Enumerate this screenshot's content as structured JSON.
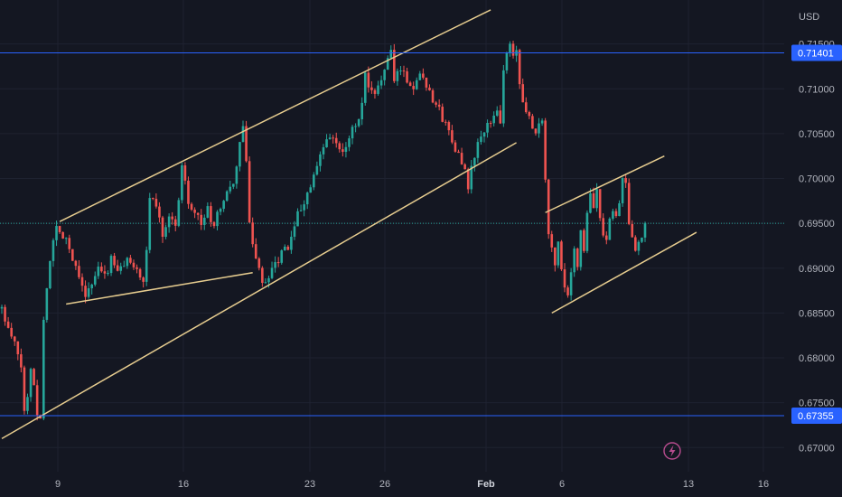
{
  "chart_data": {
    "type": "candlestick",
    "title": "",
    "currency_label": "USD",
    "x_axis_ticks": [
      "9",
      "16",
      "23",
      "26",
      "Feb",
      "6",
      "13",
      "16"
    ],
    "x_axis_bold_tick": "Feb",
    "y_axis_ticks": [
      "0.71500",
      "0.71000",
      "0.70500",
      "0.70000",
      "0.69500",
      "0.69000",
      "0.68500",
      "0.68000",
      "0.67500",
      "0.67000"
    ],
    "ylim": [
      0.6665,
      0.7192
    ],
    "horizontal_levels": [
      {
        "label": "0.71401",
        "value": 0.71401
      },
      {
        "label": "0.67355",
        "value": 0.67355
      }
    ],
    "last_price": 0.695,
    "grid": true,
    "trendlines": [
      {
        "role": "ascending-channel-lower",
        "from": {
          "x": 0,
          "y": 0.671
        },
        "to": {
          "x": 160,
          "y": 0.704
        }
      },
      {
        "role": "ascending-channel-upper",
        "from": {
          "x": 18,
          "y": 0.6952
        },
        "to": {
          "x": 152,
          "y": 0.7188
        }
      },
      {
        "role": "inner-support",
        "from": {
          "x": 20,
          "y": 0.686
        },
        "to": {
          "x": 78,
          "y": 0.6895
        }
      },
      {
        "role": "flag-lower",
        "from": {
          "x": 171,
          "y": 0.685
        },
        "to": {
          "x": 216,
          "y": 0.694
        }
      },
      {
        "role": "flag-upper",
        "from": {
          "x": 169,
          "y": 0.6962
        },
        "to": {
          "x": 206,
          "y": 0.7025
        }
      }
    ],
    "price_path": [
      [
        0,
        0.6855
      ],
      [
        2,
        0.683
      ],
      [
        4,
        0.6815
      ],
      [
        6,
        0.679
      ],
      [
        7,
        0.674
      ],
      [
        8,
        0.6755
      ],
      [
        9,
        0.679
      ],
      [
        10,
        0.677
      ],
      [
        11,
        0.674
      ],
      [
        12,
        0.6735
      ],
      [
        13,
        0.684
      ],
      [
        14,
        0.688
      ],
      [
        15,
        0.691
      ],
      [
        16,
        0.693
      ],
      [
        17,
        0.6945
      ],
      [
        18,
        0.694
      ],
      [
        20,
        0.6935
      ],
      [
        22,
        0.691
      ],
      [
        24,
        0.6895
      ],
      [
        26,
        0.687
      ],
      [
        28,
        0.688
      ],
      [
        30,
        0.69
      ],
      [
        32,
        0.689
      ],
      [
        34,
        0.691
      ],
      [
        36,
        0.6895
      ],
      [
        38,
        0.6905
      ],
      [
        40,
        0.691
      ],
      [
        42,
        0.69
      ],
      [
        44,
        0.688
      ],
      [
        45,
        0.692
      ],
      [
        46,
        0.698
      ],
      [
        48,
        0.697
      ],
      [
        50,
        0.694
      ],
      [
        52,
        0.696
      ],
      [
        54,
        0.6945
      ],
      [
        56,
        0.7015
      ],
      [
        57,
        0.7
      ],
      [
        58,
        0.6975
      ],
      [
        60,
        0.6965
      ],
      [
        62,
        0.695
      ],
      [
        64,
        0.6965
      ],
      [
        66,
        0.6945
      ],
      [
        68,
        0.697
      ],
      [
        70,
        0.6985
      ],
      [
        72,
        0.699
      ],
      [
        74,
        0.704
      ],
      [
        75,
        0.706
      ],
      [
        76,
        0.7015
      ],
      [
        77,
        0.695
      ],
      [
        78,
        0.693
      ],
      [
        80,
        0.6895
      ],
      [
        82,
        0.688
      ],
      [
        84,
        0.6895
      ],
      [
        86,
        0.691
      ],
      [
        88,
        0.692
      ],
      [
        90,
        0.693
      ],
      [
        92,
        0.696
      ],
      [
        94,
        0.6975
      ],
      [
        96,
        0.699
      ],
      [
        98,
        0.701
      ],
      [
        100,
        0.7035
      ],
      [
        102,
        0.7045
      ],
      [
        104,
        0.704
      ],
      [
        106,
        0.7025
      ],
      [
        108,
        0.705
      ],
      [
        110,
        0.706
      ],
      [
        112,
        0.708
      ],
      [
        113,
        0.7115
      ],
      [
        114,
        0.71
      ],
      [
        116,
        0.709
      ],
      [
        118,
        0.7115
      ],
      [
        120,
        0.713
      ],
      [
        121,
        0.714
      ],
      [
        122,
        0.711
      ],
      [
        124,
        0.7125
      ],
      [
        126,
        0.711
      ],
      [
        128,
        0.71
      ],
      [
        130,
        0.712
      ],
      [
        132,
        0.7105
      ],
      [
        134,
        0.709
      ],
      [
        136,
        0.7075
      ],
      [
        138,
        0.706
      ],
      [
        140,
        0.7045
      ],
      [
        142,
        0.7025
      ],
      [
        144,
        0.7005
      ],
      [
        145,
        0.699
      ],
      [
        146,
        0.701
      ],
      [
        148,
        0.704
      ],
      [
        150,
        0.705
      ],
      [
        152,
        0.7065
      ],
      [
        154,
        0.708
      ],
      [
        155,
        0.706
      ],
      [
        156,
        0.712
      ],
      [
        157,
        0.714
      ],
      [
        158,
        0.715
      ],
      [
        159,
        0.7135
      ],
      [
        160,
        0.714
      ],
      [
        161,
        0.711
      ],
      [
        162,
        0.709
      ],
      [
        163,
        0.707
      ],
      [
        164,
        0.7065
      ],
      [
        166,
        0.7055
      ],
      [
        168,
        0.706
      ],
      [
        169,
        0.7
      ],
      [
        170,
        0.694
      ],
      [
        171,
        0.692
      ],
      [
        172,
        0.69
      ],
      [
        173,
        0.693
      ],
      [
        174,
        0.6895
      ],
      [
        175,
        0.688
      ],
      [
        176,
        0.6865
      ],
      [
        177,
        0.689
      ],
      [
        178,
        0.692
      ],
      [
        179,
        0.6905
      ],
      [
        180,
        0.694
      ],
      [
        181,
        0.692
      ],
      [
        182,
        0.696
      ],
      [
        183,
        0.698
      ],
      [
        184,
        0.6965
      ],
      [
        185,
        0.6985
      ],
      [
        186,
        0.696
      ],
      [
        187,
        0.694
      ],
      [
        188,
        0.6935
      ],
      [
        189,
        0.695
      ],
      [
        190,
        0.6965
      ],
      [
        191,
        0.6955
      ],
      [
        192,
        0.6975
      ],
      [
        193,
        0.7005
      ],
      [
        194,
        0.699
      ],
      [
        195,
        0.695
      ],
      [
        196,
        0.693
      ],
      [
        197,
        0.6915
      ],
      [
        198,
        0.6925
      ],
      [
        199,
        0.6935
      ],
      [
        200,
        0.695
      ]
    ]
  },
  "icons": {
    "flash": "lightning-icon"
  },
  "colors": {
    "background": "#141722",
    "grid": "#1e2230",
    "up": "#26a69a",
    "down": "#ef5350",
    "trendline": "#e6cc8f",
    "level_line": "#2962ff",
    "last_price_line": "#26a69a",
    "axis_text": "#b2b5be"
  }
}
